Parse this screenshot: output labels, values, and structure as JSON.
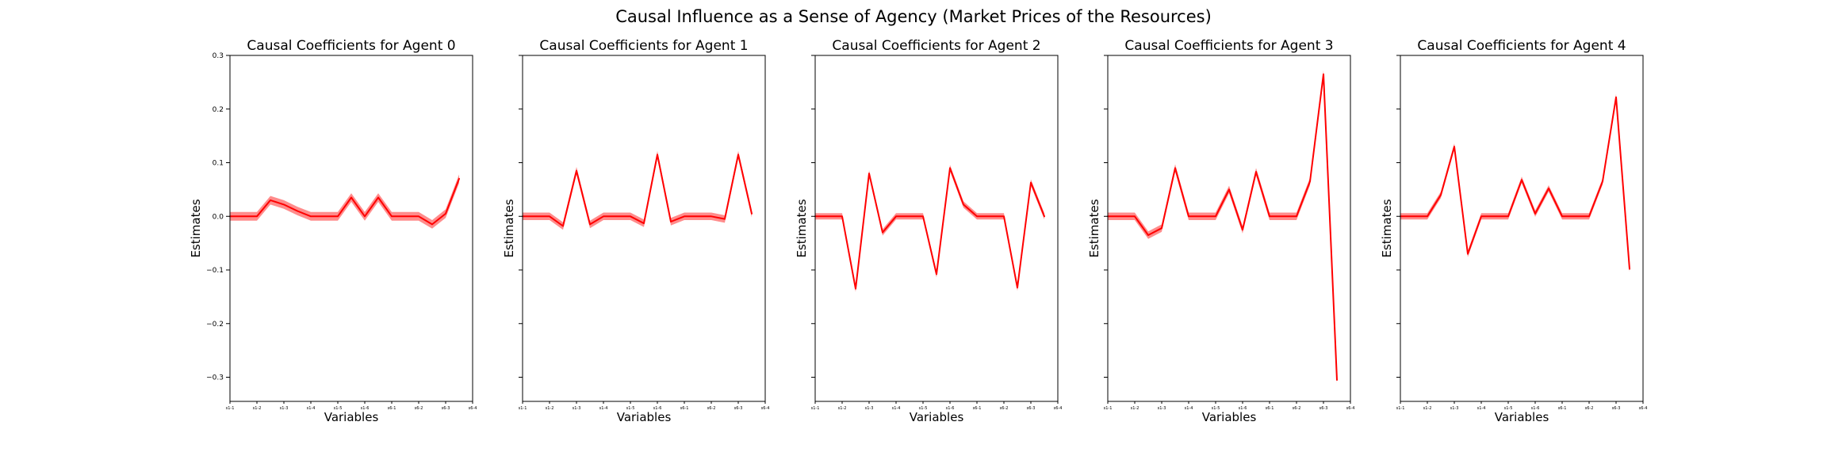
{
  "figure_title": "Causal Influence as a Sense of Agency (Market Prices of the Resources)",
  "chart_data": [
    {
      "type": "line",
      "title": "Causal Coefficients for Agent 0",
      "xlabel": "Variables",
      "ylabel": "Estimates",
      "ylim": [
        -0.345,
        0.3
      ],
      "yticks": [
        "0.3",
        "0.2",
        "0.1",
        "0.0",
        "−0.1",
        "−0.2",
        "−0.3"
      ],
      "ytick_values": [
        0.3,
        0.2,
        0.1,
        0.0,
        -0.1,
        -0.2,
        -0.3
      ],
      "show_yticklabels": true,
      "xticks": [
        "s1-1",
        "s1-2",
        "s1-3",
        "s1-4",
        "s1-5",
        "s1-6",
        "s6-1",
        "s6-2",
        "s6-3",
        "s6-4"
      ],
      "grid": false,
      "line_color": "#ff0000",
      "band_color": "#ff0000",
      "series": [
        {
          "values": [
            0.0,
            0.0,
            0.0,
            0.03,
            0.022,
            0.01,
            0.0,
            0.0,
            0.0,
            0.035,
            0.0,
            0.035,
            0.0,
            0.0,
            0.0,
            -0.015,
            0.005,
            0.07
          ],
          "band": 0.008
        }
      ]
    },
    {
      "type": "line",
      "title": "Causal Coefficients for Agent 1",
      "xlabel": "Variables",
      "ylabel": "Estimates",
      "ylim": [
        -0.345,
        0.3
      ],
      "yticks": [
        "0.3",
        "0.2",
        "0.1",
        "0.0",
        "−0.1",
        "−0.2",
        "−0.3"
      ],
      "ytick_values": [
        0.3,
        0.2,
        0.1,
        0.0,
        -0.1,
        -0.2,
        -0.3
      ],
      "show_yticklabels": false,
      "xticks": [
        "s1-1",
        "s1-2",
        "s1-3",
        "s1-4",
        "s1-5",
        "s1-6",
        "s6-1",
        "s6-2",
        "s6-3",
        "s6-4"
      ],
      "grid": false,
      "line_color": "#ff0000",
      "band_color": "#ff0000",
      "series": [
        {
          "values": [
            0.0,
            0.0,
            0.0,
            -0.018,
            0.085,
            -0.015,
            0.0,
            0.0,
            0.0,
            -0.013,
            0.115,
            -0.01,
            0.0,
            0.0,
            0.0,
            -0.005,
            0.115,
            0.005
          ],
          "band": 0.007
        }
      ]
    },
    {
      "type": "line",
      "title": "Causal Coefficients for Agent 2",
      "xlabel": "Variables",
      "ylabel": "Estimates",
      "ylim": [
        -0.345,
        0.3
      ],
      "yticks": [
        "0.3",
        "0.2",
        "0.1",
        "0.0",
        "−0.1",
        "−0.2",
        "−0.3"
      ],
      "ytick_values": [
        0.3,
        0.2,
        0.1,
        0.0,
        -0.1,
        -0.2,
        -0.3
      ],
      "show_yticklabels": false,
      "xticks": [
        "s1-1",
        "s1-2",
        "s1-3",
        "s1-4",
        "s1-5",
        "s1-6",
        "s6-1",
        "s6-2",
        "s6-3",
        "s6-4"
      ],
      "grid": false,
      "line_color": "#ff0000",
      "band_color": "#ff0000",
      "series": [
        {
          "values": [
            0.0,
            0.0,
            0.0,
            -0.135,
            0.08,
            -0.03,
            0.0,
            0.0,
            0.0,
            -0.108,
            0.09,
            0.022,
            0.0,
            0.0,
            0.0,
            -0.133,
            0.063,
            0.0
          ],
          "band": 0.006
        }
      ]
    },
    {
      "type": "line",
      "title": "Causal Coefficients for Agent 3",
      "xlabel": "Variables",
      "ylabel": "Estimates",
      "ylim": [
        -0.345,
        0.3
      ],
      "yticks": [
        "0.3",
        "0.2",
        "0.1",
        "0.0",
        "−0.1",
        "−0.2",
        "−0.3"
      ],
      "ytick_values": [
        0.3,
        0.2,
        0.1,
        0.0,
        -0.1,
        -0.2,
        -0.3
      ],
      "show_yticklabels": false,
      "xticks": [
        "s1-1",
        "s1-2",
        "s1-3",
        "s1-4",
        "s1-5",
        "s1-6",
        "s6-1",
        "s6-2",
        "s6-3",
        "s6-4"
      ],
      "grid": false,
      "line_color": "#ff0000",
      "band_color": "#ff0000",
      "series": [
        {
          "values": [
            0.0,
            0.0,
            0.0,
            -0.035,
            -0.022,
            0.09,
            0.0,
            0.0,
            0.0,
            0.05,
            -0.025,
            0.083,
            0.0,
            0.0,
            0.0,
            0.065,
            0.265,
            -0.305
          ],
          "band": 0.007
        }
      ]
    },
    {
      "type": "line",
      "title": "Causal Coefficients for Agent 4",
      "xlabel": "Variables",
      "ylabel": "Estimates",
      "ylim": [
        -0.345,
        0.3
      ],
      "yticks": [
        "0.3",
        "0.2",
        "0.1",
        "0.0",
        "−0.1",
        "−0.2",
        "−0.3"
      ],
      "ytick_values": [
        0.3,
        0.2,
        0.1,
        0.0,
        -0.1,
        -0.2,
        -0.3
      ],
      "show_yticklabels": false,
      "xticks": [
        "s1-1",
        "s1-2",
        "s1-3",
        "s1-4",
        "s1-5",
        "s1-6",
        "s6-1",
        "s6-2",
        "s6-3",
        "s6-4"
      ],
      "grid": false,
      "line_color": "#ff0000",
      "band_color": "#ff0000",
      "series": [
        {
          "values": [
            0.0,
            0.0,
            0.0,
            0.04,
            0.13,
            -0.07,
            0.0,
            0.0,
            0.0,
            0.068,
            0.005,
            0.052,
            0.0,
            0.0,
            0.0,
            0.065,
            0.222,
            -0.098
          ],
          "band": 0.006
        }
      ]
    }
  ]
}
